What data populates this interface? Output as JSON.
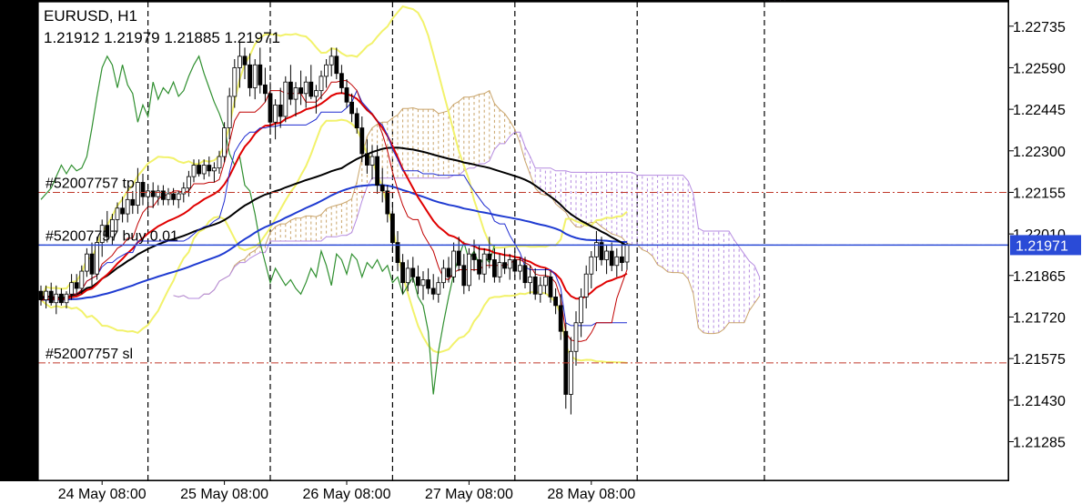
{
  "header": {
    "symbol_timeframe": "EURUSD, H1",
    "ohlc": "1.21912 1.21979 1.21885 1.21971"
  },
  "current_price_label": "1.21971",
  "order_lines": [
    {
      "label": "#52007757 tp",
      "price": 1.22155
    },
    {
      "label": "#52007757 buy 0.01",
      "price": 1.21971
    },
    {
      "label": "#52007757 sl",
      "price": 1.2156
    }
  ],
  "colors": {
    "background": "#ffffff",
    "candle": "#000000",
    "grid": "#000000",
    "order_line": "#c0392b",
    "bid_line": "#2a4bd7",
    "price_label_bg": "#2a4bd7",
    "bollinger": "#f2f26b",
    "ma_red": "#e00000",
    "ma_black": "#000000",
    "ma_blue": "#1f3bd1",
    "tenkan": "#c00000",
    "kijun": "#1e2bd0",
    "chikou": "#2f8f2f",
    "kumo_up": "#c9a46a",
    "kumo_down": "#b58be0"
  },
  "chart_data": {
    "type": "candlestick",
    "symbol": "EURUSD",
    "timeframe": "H1",
    "y_ticks": [
      1.22735,
      1.2259,
      1.22445,
      1.223,
      1.22155,
      1.2201,
      1.21865,
      1.2172,
      1.21575,
      1.2143,
      1.21285
    ],
    "ylim": [
      1.2115,
      1.2282
    ],
    "x_ticks": [
      {
        "label": "24 May 08:00",
        "bar": 12
      },
      {
        "label": "25 May 08:00",
        "bar": 36
      },
      {
        "label": "26 May 08:00",
        "bar": 60
      },
      {
        "label": "27 May 08:00",
        "bar": 84
      },
      {
        "label": "28 May 08:00",
        "bar": 108
      }
    ],
    "day_separators": [
      21,
      45,
      69,
      93,
      117
    ],
    "bar_count": 121,
    "current_price": 1.21971,
    "candles": [
      [
        1.2181,
        1.2183,
        1.2176,
        1.2178
      ],
      [
        1.2178,
        1.2183,
        1.2175,
        1.2181
      ],
      [
        1.2181,
        1.2184,
        1.2176,
        1.2177
      ],
      [
        1.2177,
        1.2183,
        1.2173,
        1.218
      ],
      [
        1.218,
        1.2182,
        1.2176,
        1.2177
      ],
      [
        1.2177,
        1.2181,
        1.2175,
        1.218
      ],
      [
        1.218,
        1.2187,
        1.2178,
        1.2184
      ],
      [
        1.2184,
        1.2187,
        1.218,
        1.2182
      ],
      [
        1.2182,
        1.219,
        1.218,
        1.2188
      ],
      [
        1.2188,
        1.2196,
        1.2186,
        1.2194
      ],
      [
        1.2194,
        1.2198,
        1.2183,
        1.2187
      ],
      [
        1.2187,
        1.22,
        1.2185,
        1.2198
      ],
      [
        1.2198,
        1.2206,
        1.2193,
        1.2204
      ],
      [
        1.2204,
        1.2209,
        1.2198,
        1.22
      ],
      [
        1.22,
        1.2208,
        1.2197,
        1.2206
      ],
      [
        1.2206,
        1.2212,
        1.2202,
        1.221
      ],
      [
        1.221,
        1.2214,
        1.2205,
        1.2208
      ],
      [
        1.2208,
        1.2216,
        1.2205,
        1.2213
      ],
      [
        1.2213,
        1.2216,
        1.2208,
        1.2211
      ],
      [
        1.2211,
        1.2224,
        1.2208,
        1.2219
      ],
      [
        1.2219,
        1.2222,
        1.2211,
        1.2214
      ],
      [
        1.2214,
        1.2218,
        1.2209,
        1.2216
      ],
      [
        1.2216,
        1.2219,
        1.221,
        1.2214
      ],
      [
        1.2214,
        1.2218,
        1.2211,
        1.2216
      ],
      [
        1.2216,
        1.2218,
        1.2211,
        1.2213
      ],
      [
        1.2213,
        1.2217,
        1.2211,
        1.2215
      ],
      [
        1.2215,
        1.2217,
        1.2211,
        1.2213
      ],
      [
        1.2213,
        1.2216,
        1.221,
        1.2215
      ],
      [
        1.2215,
        1.2219,
        1.2212,
        1.2217
      ],
      [
        1.2217,
        1.2223,
        1.2214,
        1.2221
      ],
      [
        1.2221,
        1.2227,
        1.2219,
        1.2225
      ],
      [
        1.2225,
        1.2227,
        1.2221,
        1.2222
      ],
      [
        1.2222,
        1.2227,
        1.222,
        1.2225
      ],
      [
        1.2225,
        1.2228,
        1.2221,
        1.2223
      ],
      [
        1.2223,
        1.2226,
        1.2219,
        1.2224
      ],
      [
        1.2224,
        1.223,
        1.2222,
        1.2228
      ],
      [
        1.2228,
        1.224,
        1.2226,
        1.2238
      ],
      [
        1.2238,
        1.2252,
        1.2234,
        1.2249
      ],
      [
        1.2249,
        1.2262,
        1.2245,
        1.2259
      ],
      [
        1.2259,
        1.2268,
        1.2252,
        1.2263
      ],
      [
        1.2263,
        1.2266,
        1.2255,
        1.226
      ],
      [
        1.226,
        1.2264,
        1.2249,
        1.2252
      ],
      [
        1.2252,
        1.2262,
        1.2248,
        1.226
      ],
      [
        1.226,
        1.2266,
        1.225,
        1.2253
      ],
      [
        1.2253,
        1.2259,
        1.2247,
        1.225
      ],
      [
        1.225,
        1.2254,
        1.2236,
        1.224
      ],
      [
        1.224,
        1.2248,
        1.2234,
        1.2246
      ],
      [
        1.2246,
        1.2252,
        1.2238,
        1.2242
      ],
      [
        1.2242,
        1.2256,
        1.224,
        1.2254
      ],
      [
        1.2254,
        1.226,
        1.2246,
        1.2248
      ],
      [
        1.2248,
        1.2254,
        1.2242,
        1.2252
      ],
      [
        1.2252,
        1.2258,
        1.2246,
        1.225
      ],
      [
        1.225,
        1.2256,
        1.2245,
        1.2254
      ],
      [
        1.2254,
        1.226,
        1.2248,
        1.2249
      ],
      [
        1.2249,
        1.2253,
        1.2243,
        1.2251
      ],
      [
        1.2251,
        1.2258,
        1.2248,
        1.2256
      ],
      [
        1.2256,
        1.2262,
        1.2252,
        1.226
      ],
      [
        1.226,
        1.2266,
        1.2256,
        1.2263
      ],
      [
        1.2263,
        1.2266,
        1.2255,
        1.2257
      ],
      [
        1.2257,
        1.226,
        1.225,
        1.2252
      ],
      [
        1.2252,
        1.2255,
        1.2245,
        1.2247
      ],
      [
        1.2247,
        1.225,
        1.224,
        1.2243
      ],
      [
        1.2243,
        1.2245,
        1.2236,
        1.2238
      ],
      [
        1.2238,
        1.2242,
        1.2226,
        1.2229
      ],
      [
        1.2229,
        1.2234,
        1.2222,
        1.2225
      ],
      [
        1.2225,
        1.2232,
        1.222,
        1.2228
      ],
      [
        1.2228,
        1.2232,
        1.2215,
        1.2218
      ],
      [
        1.2218,
        1.2224,
        1.2212,
        1.2216
      ],
      [
        1.2216,
        1.2218,
        1.2205,
        1.2208
      ],
      [
        1.2208,
        1.2212,
        1.2195,
        1.2198
      ],
      [
        1.2198,
        1.2202,
        1.2188,
        1.2191
      ],
      [
        1.2191,
        1.2194,
        1.218,
        1.2184
      ],
      [
        1.2184,
        1.2192,
        1.2181,
        1.2189
      ],
      [
        1.2189,
        1.2193,
        1.2184,
        1.2186
      ],
      [
        1.2186,
        1.219,
        1.218,
        1.2183
      ],
      [
        1.2183,
        1.2188,
        1.2178,
        1.2185
      ],
      [
        1.2185,
        1.2189,
        1.218,
        1.2182
      ],
      [
        1.2182,
        1.2187,
        1.2178,
        1.218
      ],
      [
        1.218,
        1.2186,
        1.2177,
        1.2184
      ],
      [
        1.2184,
        1.2192,
        1.2182,
        1.2189
      ],
      [
        1.2189,
        1.2193,
        1.2184,
        1.2186
      ],
      [
        1.2186,
        1.2198,
        1.2184,
        1.2195
      ],
      [
        1.2195,
        1.22,
        1.2188,
        1.219
      ],
      [
        1.219,
        1.2194,
        1.218,
        1.2183
      ],
      [
        1.2183,
        1.2196,
        1.2181,
        1.2194
      ],
      [
        1.2194,
        1.2199,
        1.2188,
        1.2192
      ],
      [
        1.2192,
        1.2197,
        1.2185,
        1.2187
      ],
      [
        1.2187,
        1.2196,
        1.2184,
        1.2194
      ],
      [
        1.2194,
        1.22,
        1.2189,
        1.2192
      ],
      [
        1.2192,
        1.2196,
        1.2184,
        1.2186
      ],
      [
        1.2186,
        1.2194,
        1.2184,
        1.2191
      ],
      [
        1.2191,
        1.2196,
        1.2187,
        1.2189
      ],
      [
        1.2189,
        1.2194,
        1.2185,
        1.2192
      ],
      [
        1.2192,
        1.2195,
        1.2186,
        1.2188
      ],
      [
        1.2188,
        1.2193,
        1.2185,
        1.219
      ],
      [
        1.219,
        1.2193,
        1.2182,
        1.2184
      ],
      [
        1.2184,
        1.219,
        1.218,
        1.2186
      ],
      [
        1.2186,
        1.2189,
        1.2178,
        1.218
      ],
      [
        1.218,
        1.2186,
        1.2177,
        1.2183
      ],
      [
        1.2183,
        1.2189,
        1.218,
        1.2186
      ],
      [
        1.2186,
        1.2188,
        1.2177,
        1.2179
      ],
      [
        1.2179,
        1.2182,
        1.2173,
        1.2176
      ],
      [
        1.2176,
        1.218,
        1.2164,
        1.2167
      ],
      [
        1.2167,
        1.217,
        1.214,
        1.2145
      ],
      [
        1.2145,
        1.2165,
        1.2138,
        1.216
      ],
      [
        1.216,
        1.2174,
        1.2155,
        1.217
      ],
      [
        1.217,
        1.2182,
        1.2165,
        1.2179
      ],
      [
        1.2179,
        1.219,
        1.2175,
        1.2187
      ],
      [
        1.2187,
        1.2195,
        1.2182,
        1.2193
      ],
      [
        1.2193,
        1.2202,
        1.2188,
        1.2198
      ],
      [
        1.2198,
        1.22,
        1.219,
        1.2192
      ],
      [
        1.2192,
        1.2197,
        1.2187,
        1.2195
      ],
      [
        1.2195,
        1.2198,
        1.2188,
        1.219
      ],
      [
        1.219,
        1.2196,
        1.2186,
        1.2193
      ],
      [
        1.2193,
        1.2198,
        1.2188,
        1.2191
      ],
      [
        1.21912,
        1.21979,
        1.21885,
        1.21971
      ]
    ],
    "indicators": [
      {
        "name": "Bollinger Bands",
        "type": "envelope"
      },
      {
        "name": "Moving Average (red)",
        "type": "line"
      },
      {
        "name": "Moving Average (black)",
        "type": "line"
      },
      {
        "name": "Moving Average (blue)",
        "type": "line"
      },
      {
        "name": "Ichimoku Kinko Hyo",
        "type": "cloud"
      }
    ]
  }
}
